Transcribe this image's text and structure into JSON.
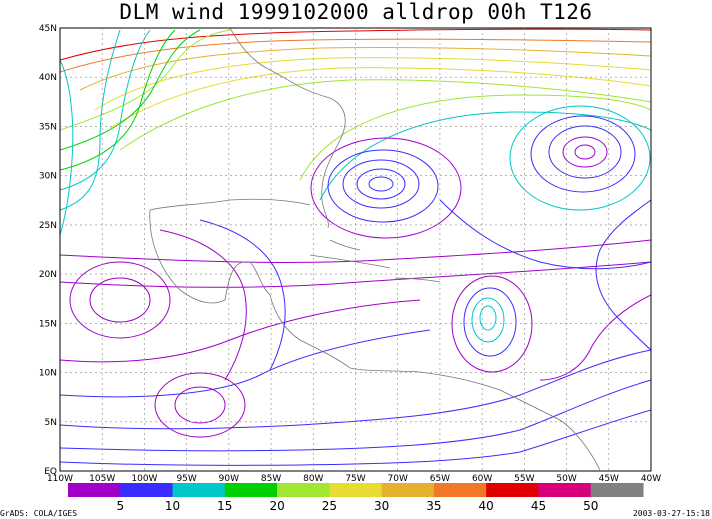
{
  "title": "DLM wind 1999102000 alldrop 00h T126",
  "lat_labels": [
    "45N",
    "40N",
    "35N",
    "30N",
    "25N",
    "20N",
    "15N",
    "10N",
    "5N",
    "EQ"
  ],
  "lon_labels": [
    "110W",
    "105W",
    "100W",
    "95W",
    "90W",
    "85W",
    "80W",
    "75W",
    "70W",
    "65W",
    "60W",
    "55W",
    "50W",
    "45W",
    "40W"
  ],
  "colorbar": {
    "labels": [
      "5",
      "10",
      "15",
      "20",
      "25",
      "30",
      "35",
      "40",
      "45",
      "50"
    ],
    "colors": [
      "#a000c8",
      "#3a2cff",
      "#00c8c8",
      "#00d000",
      "#a0e632",
      "#e6dc32",
      "#e6af2d",
      "#f07828",
      "#e00000",
      "#d8007a",
      "#808080"
    ]
  },
  "footer": {
    "left": "GrADS: COLA/IGES",
    "right": "2003-03-27-15:18"
  }
}
